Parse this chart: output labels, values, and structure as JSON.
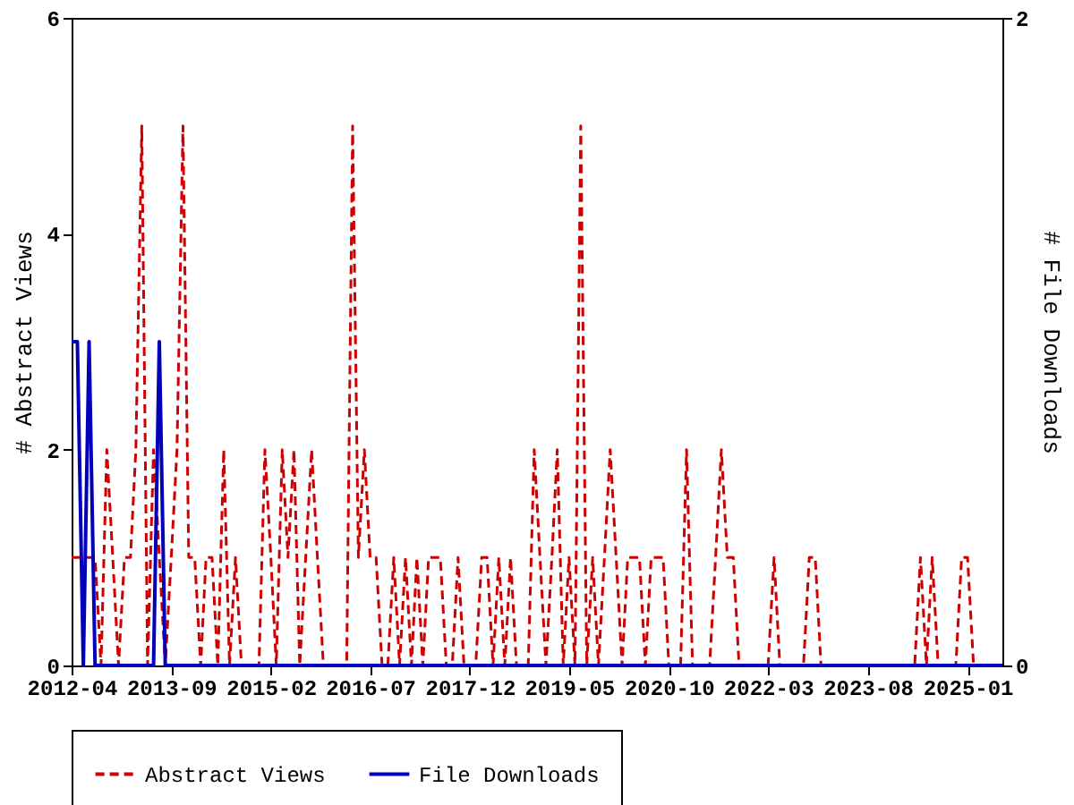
{
  "chart_data": {
    "type": "line",
    "ylabel": "# Abstract Views",
    "y2label": "# File Downloads",
    "legend": "bottom",
    "x": [
      "2012-04",
      "2012-05",
      "2012-06",
      "2012-07",
      "2012-08",
      "2012-09",
      "2012-10",
      "2012-11",
      "2012-12",
      "2013-01",
      "2013-02",
      "2013-03",
      "2013-04",
      "2013-05",
      "2013-06",
      "2013-07",
      "2013-08",
      "2013-09",
      "2013-10",
      "2013-11",
      "2013-12",
      "2014-01",
      "2014-02",
      "2014-03",
      "2014-04",
      "2014-05",
      "2014-06",
      "2014-07",
      "2014-08",
      "2014-09",
      "2014-10",
      "2014-11",
      "2014-12",
      "2015-01",
      "2015-02",
      "2015-03",
      "2015-04",
      "2015-05",
      "2015-06",
      "2015-07",
      "2015-08",
      "2015-09",
      "2015-10",
      "2015-11",
      "2015-12",
      "2016-01",
      "2016-02",
      "2016-03",
      "2016-04",
      "2016-05",
      "2016-06",
      "2016-07",
      "2016-08",
      "2016-09",
      "2016-10",
      "2016-11",
      "2016-12",
      "2017-01",
      "2017-02",
      "2017-03",
      "2017-04",
      "2017-05",
      "2017-06",
      "2017-07",
      "2017-08",
      "2017-09",
      "2017-10",
      "2017-11",
      "2017-12",
      "2018-01",
      "2018-02",
      "2018-03",
      "2018-04",
      "2018-05",
      "2018-06",
      "2018-07",
      "2018-08",
      "2018-09",
      "2018-10",
      "2018-11",
      "2018-12",
      "2019-01",
      "2019-02",
      "2019-03",
      "2019-04",
      "2019-05",
      "2019-06",
      "2019-07",
      "2019-08",
      "2019-09",
      "2019-10",
      "2019-11",
      "2019-12",
      "2020-01",
      "2020-02",
      "2020-03",
      "2020-04",
      "2020-05",
      "2020-06",
      "2020-07",
      "2020-08",
      "2020-09",
      "2020-10",
      "2020-11",
      "2020-12",
      "2021-01",
      "2021-02",
      "2021-03",
      "2021-04",
      "2021-05",
      "2021-06",
      "2021-07",
      "2021-08",
      "2021-09",
      "2021-10",
      "2021-11",
      "2021-12",
      "2022-01",
      "2022-02",
      "2022-03",
      "2022-04",
      "2022-05",
      "2022-06",
      "2022-07",
      "2022-08",
      "2022-09",
      "2022-10",
      "2022-11",
      "2022-12",
      "2023-01",
      "2023-02",
      "2023-03",
      "2023-04",
      "2023-05",
      "2023-06",
      "2023-07",
      "2023-08",
      "2023-09",
      "2023-10",
      "2023-11",
      "2023-12",
      "2024-01",
      "2024-02",
      "2024-03",
      "2024-04",
      "2024-05",
      "2024-06",
      "2024-07",
      "2024-08",
      "2024-09",
      "2024-10",
      "2024-11",
      "2024-12",
      "2025-01",
      "2025-02",
      "2025-03",
      "2025-04",
      "2025-05",
      "2025-06",
      "2025-07"
    ],
    "xlim": [
      "2012-04",
      "2025-07"
    ],
    "xticks": [
      "2012-04",
      "2013-09",
      "2015-02",
      "2016-07",
      "2017-12",
      "2019-05",
      "2020-10",
      "2022-03",
      "2023-08",
      "2025-01"
    ],
    "ylim": [
      0,
      6
    ],
    "yticks": [
      0,
      2,
      4,
      6
    ],
    "y2lim": [
      0,
      2
    ],
    "y2ticks": [
      0,
      2
    ],
    "series": [
      {
        "name": "Abstract Views",
        "color": "#cc0000",
        "line_style": "dashed",
        "values": [
          1,
          1,
          1,
          1,
          1,
          0,
          2,
          1,
          0,
          1,
          1,
          2,
          5,
          0,
          2,
          1,
          0,
          1,
          2,
          5,
          1,
          1,
          0,
          1,
          1,
          0,
          2,
          0,
          1,
          0,
          0,
          0,
          0,
          2,
          1,
          0,
          2,
          1,
          2,
          0,
          1,
          2,
          1,
          0,
          0,
          0,
          0,
          0,
          5,
          1,
          2,
          1,
          1,
          0,
          0,
          1,
          0,
          1,
          0,
          1,
          0,
          1,
          1,
          1,
          0,
          0,
          1,
          0,
          0,
          0,
          1,
          1,
          0,
          1,
          0,
          1,
          0,
          0,
          0,
          2,
          1,
          0,
          1,
          2,
          0,
          1,
          0,
          5,
          0,
          1,
          0,
          1,
          2,
          1,
          0,
          1,
          1,
          1,
          0,
          1,
          1,
          1,
          0,
          0,
          0,
          2,
          0,
          0,
          0,
          0,
          1,
          2,
          1,
          1,
          0,
          0,
          0,
          0,
          0,
          0,
          1,
          0,
          0,
          0,
          0,
          0,
          1,
          1,
          0,
          0,
          0,
          0,
          0,
          0,
          0,
          0,
          0,
          0,
          0,
          0,
          0,
          0,
          0,
          0,
          0,
          1,
          0,
          1,
          0,
          0,
          0,
          0,
          1,
          1,
          0,
          0,
          0,
          0,
          null,
          null
        ]
      },
      {
        "name": "File Downloads",
        "color": "#0000bb",
        "line_style": "solid",
        "axis": "y2",
        "values": [
          1,
          1,
          0,
          1,
          0,
          0,
          0,
          0,
          0,
          0,
          0,
          0,
          0,
          0,
          0,
          1,
          0,
          0,
          0,
          0,
          0,
          0,
          0,
          0,
          0,
          0,
          0,
          0,
          0,
          0,
          0,
          0,
          0,
          0,
          0,
          0,
          0,
          0,
          0,
          0,
          0,
          0,
          0,
          0,
          0,
          0,
          0,
          0,
          0,
          0,
          0,
          0,
          0,
          0,
          0,
          0,
          0,
          0,
          0,
          0,
          0,
          0,
          0,
          0,
          0,
          0,
          0,
          0,
          0,
          0,
          0,
          0,
          0,
          0,
          0,
          0,
          0,
          0,
          0,
          0,
          0,
          0,
          0,
          0,
          0,
          0,
          0,
          0,
          0,
          0,
          0,
          0,
          0,
          0,
          0,
          0,
          0,
          0,
          0,
          0,
          0,
          0,
          0,
          0,
          0,
          0,
          0,
          0,
          0,
          0,
          0,
          0,
          0,
          0,
          0,
          0,
          0,
          0,
          0,
          0,
          0,
          0,
          0,
          0,
          0,
          0,
          0,
          0,
          0,
          0,
          0,
          0,
          0,
          0,
          0,
          0,
          0,
          0,
          0,
          0,
          0,
          0,
          0,
          0,
          0,
          0,
          0,
          0,
          0,
          0,
          0,
          0,
          0,
          0,
          0,
          0,
          0,
          0,
          0,
          0
        ]
      }
    ]
  }
}
